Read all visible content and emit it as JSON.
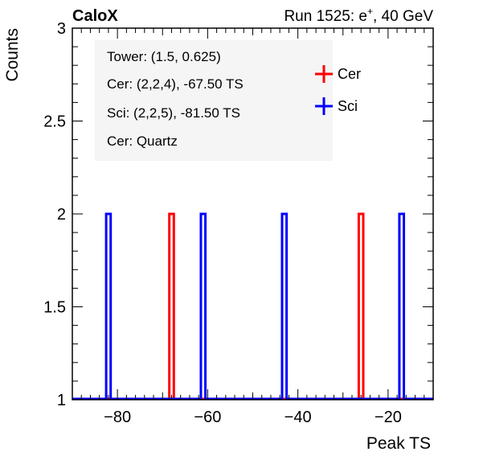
{
  "header": {
    "brand": "CaloX",
    "run_info": "Run 1525: e",
    "run_sup": "+",
    "run_energy": ", 40 GeV"
  },
  "info_box": {
    "lines": [
      "Tower: (1.5, 0.625)",
      "Cer: (2,2,4), -67.50 TS",
      "Sci: (2,2,5), -81.50 TS",
      "Cer: Quartz"
    ]
  },
  "chart_data": {
    "type": "histogram",
    "xlabel": "Peak TS",
    "ylabel": "Counts",
    "xlim": [
      -90,
      -10
    ],
    "ylim": [
      1,
      3
    ],
    "x_ticks": [
      -80,
      -60,
      -40,
      -20
    ],
    "x_tick_labels": [
      "−80",
      "−60",
      "−40",
      "−20"
    ],
    "y_ticks": [
      1,
      1.5,
      2,
      2.5,
      3
    ],
    "y_tick_labels": [
      "1",
      "1.5",
      "2",
      "2.5",
      "3"
    ],
    "bin_width": 1,
    "baseline": 1,
    "legend_position": "top-right",
    "series": [
      {
        "name": "Cer",
        "color": "#ff0000",
        "bins": [
          {
            "x": -68,
            "count": 2
          },
          {
            "x": -26,
            "count": 2
          }
        ]
      },
      {
        "name": "Sci",
        "color": "#0000ff",
        "bins": [
          {
            "x": -82,
            "count": 2
          },
          {
            "x": -61,
            "count": 2
          },
          {
            "x": -43,
            "count": 2
          },
          {
            "x": -17,
            "count": 2
          }
        ]
      }
    ]
  }
}
